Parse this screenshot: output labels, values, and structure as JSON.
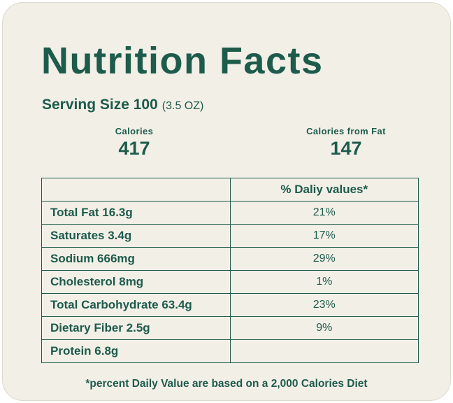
{
  "theme": {
    "text_color": "#1d5b4b",
    "background_color": "#f2efe7",
    "border_color": "#1d5b4b"
  },
  "card": {
    "title": "Nutrition Facts",
    "serving_label": "Serving Size 100",
    "serving_note": "(3.5 OZ)",
    "calories": {
      "label": "Calories",
      "value": "417"
    },
    "calories_from_fat": {
      "label": "Calories from Fat",
      "value": "147"
    },
    "table": {
      "values_header": "% Daliy values*",
      "rows": [
        {
          "nutrient": "Total Fat 16.3g",
          "value": "21%"
        },
        {
          "nutrient": "Saturates 3.4g",
          "value": "17%"
        },
        {
          "nutrient": "Sodium 666mg",
          "value": "29%"
        },
        {
          "nutrient": "Cholesterol 8mg",
          "value": "1%"
        },
        {
          "nutrient": "Total Carbohydrate 63.4g",
          "value": "23%"
        },
        {
          "nutrient": "Dietary Fiber 2.5g",
          "value": "9%"
        },
        {
          "nutrient": "Protein 6.8g",
          "value": ""
        }
      ]
    },
    "footnote": "*percent Daily Value are based on a 2,000 Calories Diet"
  }
}
